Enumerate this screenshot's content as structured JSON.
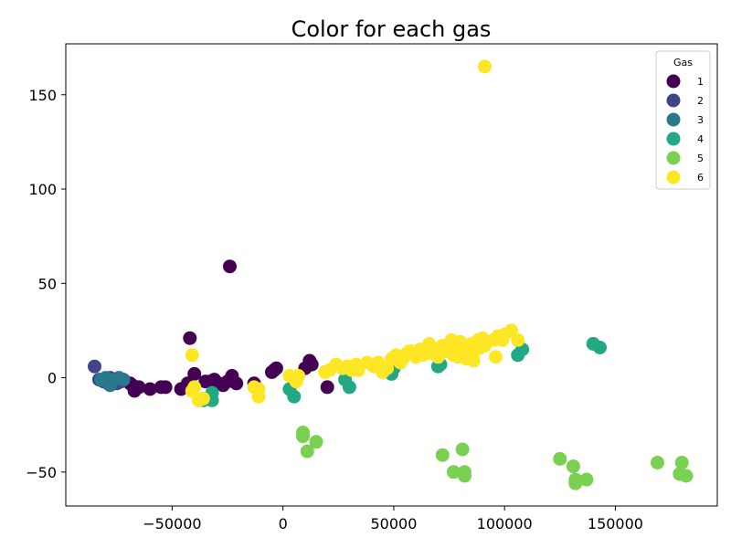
{
  "chart_data": {
    "type": "scatter",
    "title": "Color for each gas",
    "xlabel": "",
    "ylabel": "",
    "xlim": [
      -98000,
      196000
    ],
    "ylim": [
      -68,
      177
    ],
    "x_ticks": [
      {
        "value": -50000,
        "label": "−50000"
      },
      {
        "value": 0,
        "label": "0"
      },
      {
        "value": 50000,
        "label": "50000"
      },
      {
        "value": 100000,
        "label": "100000"
      },
      {
        "value": 150000,
        "label": "150000"
      }
    ],
    "y_ticks": [
      {
        "value": -50,
        "label": "−50"
      },
      {
        "value": 0,
        "label": "0"
      },
      {
        "value": 50,
        "label": "50"
      },
      {
        "value": 100,
        "label": "100"
      },
      {
        "value": 150,
        "label": "150"
      }
    ],
    "grid": false,
    "legend": {
      "title": "Gas",
      "placement": "top-right",
      "entries": [
        "1",
        "2",
        "3",
        "4",
        "5",
        "6"
      ]
    },
    "colors": {
      "1": "#440154",
      "2": "#414487",
      "3": "#2a788e",
      "4": "#22a884",
      "5": "#7ad151",
      "6": "#fde725"
    },
    "series": [
      {
        "name": "1",
        "points": [
          [
            -24000,
            59
          ],
          [
            -42000,
            21
          ],
          [
            -40000,
            2
          ],
          [
            -43000,
            -3
          ],
          [
            -46000,
            -6
          ],
          [
            -42000,
            -4
          ],
          [
            -35000,
            -2
          ],
          [
            -33000,
            -2
          ],
          [
            -31000,
            -1
          ],
          [
            -29000,
            -3
          ],
          [
            -27000,
            -4
          ],
          [
            -25000,
            -2
          ],
          [
            -23000,
            1
          ],
          [
            -21000,
            -3
          ],
          [
            -13000,
            -3
          ],
          [
            -5000,
            3
          ],
          [
            -4000,
            4
          ],
          [
            -3000,
            5
          ],
          [
            10000,
            5
          ],
          [
            12000,
            9
          ],
          [
            13000,
            7
          ],
          [
            20000,
            -5
          ],
          [
            -55000,
            -5
          ],
          [
            -53000,
            -5
          ],
          [
            -60000,
            -6
          ],
          [
            -65000,
            -5
          ],
          [
            -67000,
            -7
          ],
          [
            -69000,
            -3
          ],
          [
            -68000,
            -4
          ]
        ]
      },
      {
        "name": "2",
        "points": [
          [
            -85000,
            6
          ],
          [
            -83000,
            -1
          ],
          [
            -81000,
            -2
          ],
          [
            -80000,
            -1
          ],
          [
            -79000,
            -3
          ],
          [
            -77000,
            -2
          ],
          [
            -75000,
            -3
          ],
          [
            -73000,
            -2
          ],
          [
            -78000,
            0
          ]
        ]
      },
      {
        "name": "3",
        "points": [
          [
            -82000,
            -1
          ],
          [
            -80000,
            0
          ],
          [
            -78000,
            -4
          ],
          [
            -76000,
            -1
          ],
          [
            -74000,
            0
          ],
          [
            -72000,
            -1
          ]
        ]
      },
      {
        "name": "4",
        "points": [
          [
            -32000,
            -8
          ],
          [
            -32000,
            -12
          ],
          [
            3000,
            -6
          ],
          [
            5000,
            -10
          ],
          [
            28000,
            -1
          ],
          [
            30000,
            -5
          ],
          [
            49000,
            2
          ],
          [
            50000,
            5
          ],
          [
            70000,
            6
          ],
          [
            71000,
            7
          ],
          [
            106000,
            12
          ],
          [
            108000,
            15
          ],
          [
            140000,
            18
          ],
          [
            143000,
            16
          ],
          [
            -36000,
            -12
          ]
        ]
      },
      {
        "name": "5",
        "points": [
          [
            9000,
            -29
          ],
          [
            9000,
            -31
          ],
          [
            11000,
            -39
          ],
          [
            15000,
            -34
          ],
          [
            72000,
            -41
          ],
          [
            77000,
            -50
          ],
          [
            81000,
            -38
          ],
          [
            82000,
            -52
          ],
          [
            82000,
            -50
          ],
          [
            125000,
            -43
          ],
          [
            131000,
            -47
          ],
          [
            132000,
            -56
          ],
          [
            132000,
            -54
          ],
          [
            137000,
            -54
          ],
          [
            169000,
            -45
          ],
          [
            179000,
            -51
          ],
          [
            180000,
            -45
          ],
          [
            182000,
            -52
          ]
        ]
      },
      {
        "name": "6",
        "points": [
          [
            91000,
            165
          ],
          [
            -41000,
            12
          ],
          [
            -40000,
            -5
          ],
          [
            -38000,
            -12
          ],
          [
            -36000,
            -11
          ],
          [
            -41000,
            -7
          ],
          [
            -13000,
            -5
          ],
          [
            -11000,
            -6
          ],
          [
            -11000,
            -10
          ],
          [
            3000,
            1
          ],
          [
            5000,
            0
          ],
          [
            6000,
            -2
          ],
          [
            7000,
            1
          ],
          [
            19000,
            3
          ],
          [
            21000,
            4
          ],
          [
            24000,
            7
          ],
          [
            27000,
            5
          ],
          [
            29000,
            6
          ],
          [
            31000,
            4
          ],
          [
            33000,
            7
          ],
          [
            34000,
            4
          ],
          [
            38000,
            8
          ],
          [
            41000,
            6
          ],
          [
            43000,
            8
          ],
          [
            45000,
            3
          ],
          [
            47000,
            5
          ],
          [
            49000,
            10
          ],
          [
            51000,
            12
          ],
          [
            53000,
            8
          ],
          [
            54000,
            10
          ],
          [
            56000,
            13
          ],
          [
            58000,
            14
          ],
          [
            60000,
            11
          ],
          [
            62000,
            15
          ],
          [
            63000,
            12
          ],
          [
            65000,
            16
          ],
          [
            66000,
            18
          ],
          [
            67000,
            13
          ],
          [
            69000,
            15
          ],
          [
            70000,
            11
          ],
          [
            72000,
            17
          ],
          [
            74000,
            14
          ],
          [
            75000,
            18
          ],
          [
            76000,
            20
          ],
          [
            77000,
            12
          ],
          [
            78000,
            16
          ],
          [
            79000,
            11
          ],
          [
            80000,
            19
          ],
          [
            81000,
            14
          ],
          [
            82000,
            17
          ],
          [
            83000,
            10
          ],
          [
            84000,
            13
          ],
          [
            85000,
            18
          ],
          [
            86000,
            9
          ],
          [
            87000,
            15
          ],
          [
            88000,
            20
          ],
          [
            89000,
            16
          ],
          [
            90000,
            21
          ],
          [
            91000,
            17
          ],
          [
            92000,
            19
          ],
          [
            95000,
            20
          ],
          [
            96000,
            11
          ],
          [
            97000,
            22
          ],
          [
            99000,
            20
          ],
          [
            100000,
            23
          ],
          [
            103000,
            25
          ],
          [
            106000,
            20
          ],
          [
            55000,
            12
          ],
          [
            57000,
            14
          ]
        ]
      }
    ]
  }
}
